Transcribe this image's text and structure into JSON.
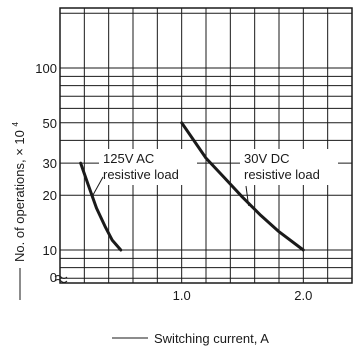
{
  "chart_data": {
    "type": "line",
    "xlabel": "Switching current, A",
    "ylabel": "No. of operations, × 10",
    "ylabel_exponent": "4",
    "y_scale": "log",
    "x_ticks": [
      {
        "value": 1.0,
        "label": "1.0"
      },
      {
        "value": 2.0,
        "label": "2.0"
      }
    ],
    "y_ticks": [
      {
        "value": 100,
        "label": "100"
      },
      {
        "value": 50,
        "label": "50"
      },
      {
        "value": 30,
        "label": "30"
      },
      {
        "value": 20,
        "label": "20"
      },
      {
        "value": 10,
        "label": "10"
      },
      {
        "value": 0,
        "label": "0"
      }
    ],
    "xlim": [
      0,
      2.4
    ],
    "ylim": [
      4,
      200
    ],
    "axis_break": "y",
    "grid": true,
    "series": [
      {
        "name": "125V AC resistive load",
        "points": [
          [
            0.17,
            30
          ],
          [
            0.23,
            23
          ],
          [
            0.3,
            17
          ],
          [
            0.37,
            13.5
          ],
          [
            0.43,
            11.3
          ],
          [
            0.5,
            10
          ]
        ]
      },
      {
        "name": "30V DC resistive load",
        "points": [
          [
            1.0,
            50
          ],
          [
            1.1,
            40
          ],
          [
            1.2,
            32
          ],
          [
            1.35,
            25
          ],
          [
            1.5,
            19.5
          ],
          [
            1.65,
            15.5
          ],
          [
            1.8,
            12.6
          ],
          [
            2.0,
            10
          ]
        ]
      }
    ],
    "annotations": [
      {
        "lines": [
          "125V AC",
          "resistive load"
        ],
        "series": 0
      },
      {
        "lines": [
          "30V DC",
          "resistive load"
        ],
        "series": 1
      }
    ],
    "colors": {
      "line": "#1a1a1a",
      "grid": "#1a1a1a"
    }
  }
}
